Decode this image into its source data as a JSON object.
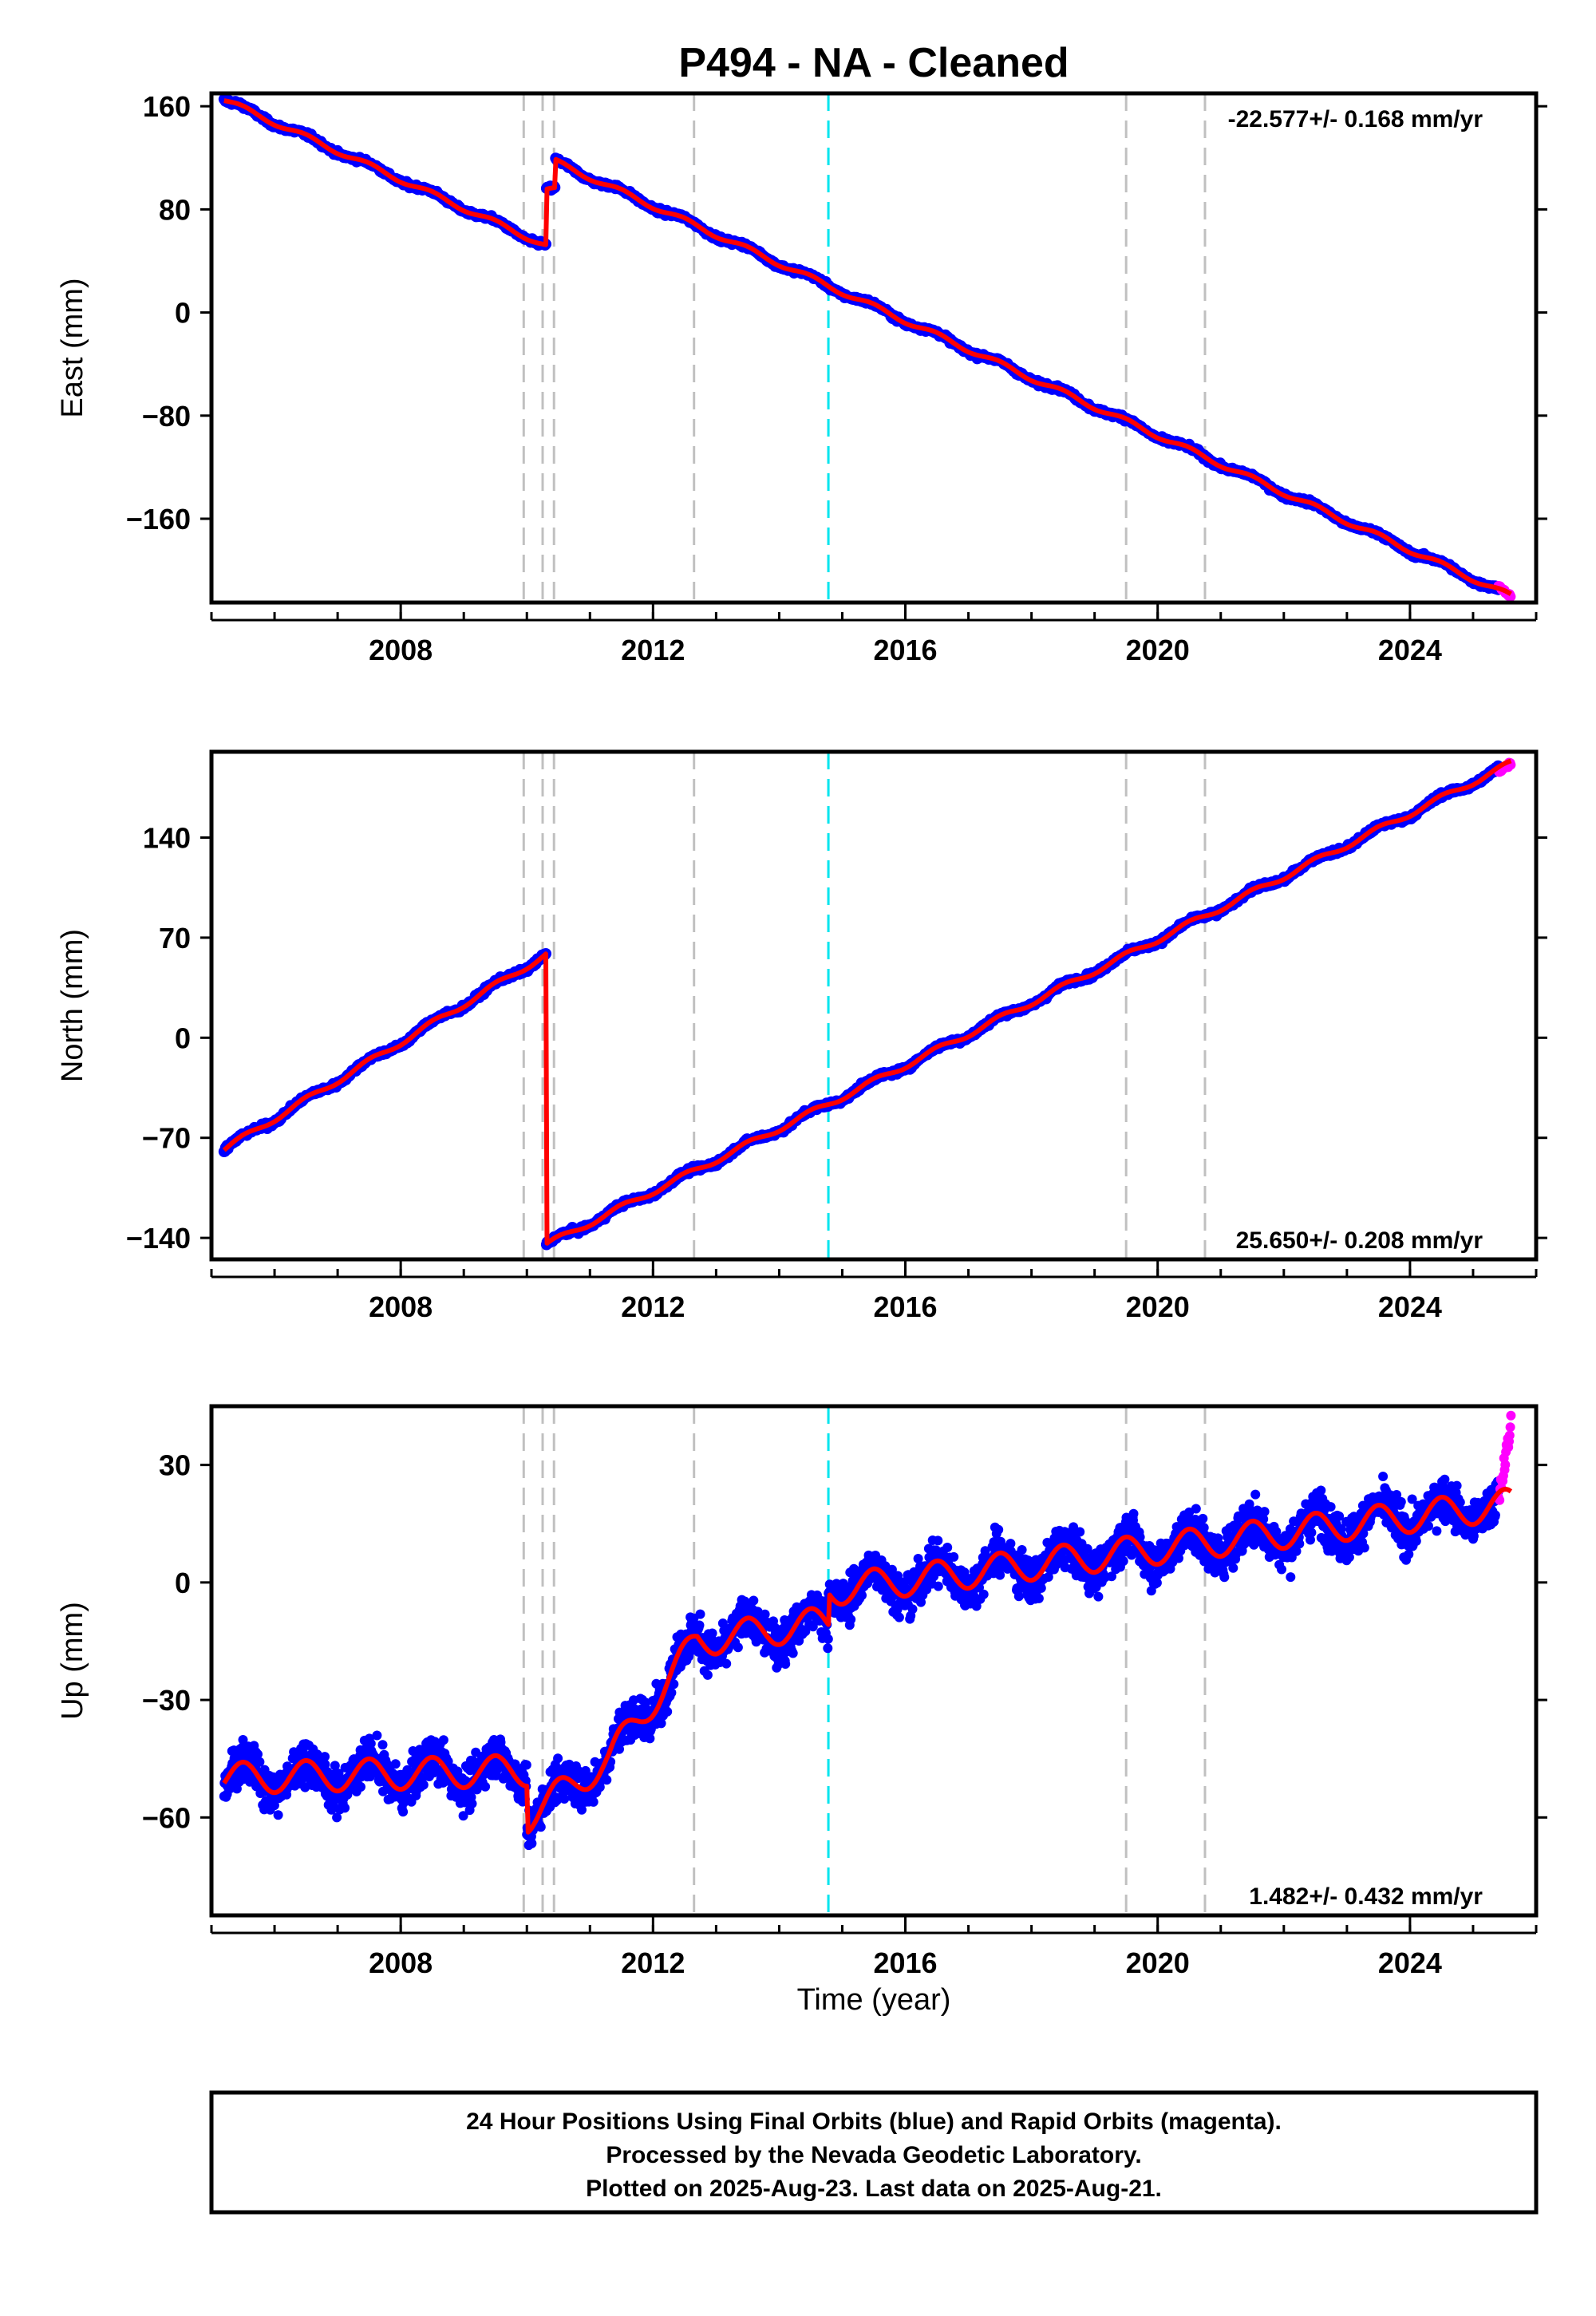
{
  "title": "P494  - NA - Cleaned",
  "colors": {
    "final_orbits": "#0000ff",
    "rapid_orbits": "#ff00ff",
    "model": "#ff0000",
    "event_line": "#c0c0c0",
    "antenna_line": "#00e5ee"
  },
  "x_axis": {
    "label": "Time (year)",
    "range": [
      2005.0,
      2026.0
    ],
    "ticks": [
      2008,
      2012,
      2016,
      2020,
      2024
    ],
    "tick_labels": [
      "2008",
      "2012",
      "2016",
      "2020",
      "2024"
    ],
    "minor_ticks": [
      2005,
      2006,
      2007,
      2008,
      2009,
      2010,
      2011,
      2012,
      2013,
      2014,
      2015,
      2016,
      2017,
      2018,
      2019,
      2020,
      2021,
      2022,
      2023,
      2024,
      2025,
      2026
    ]
  },
  "event_lines": [
    2009.95,
    2010.25,
    2010.43,
    2012.65,
    2019.5,
    2020.75
  ],
  "antenna_change_lines": [
    2014.78
  ],
  "chart_data": [
    {
      "type": "scatter",
      "component": "East",
      "ylabel": "East (mm)",
      "ylim": [
        -225,
        170
      ],
      "yticks": [
        160,
        80,
        0,
        -80,
        -160
      ],
      "ytick_labels": [
        "160",
        "80",
        "0",
        "−80",
        "−160"
      ],
      "rate": "-22.577+/- 0.168 mm/yr",
      "rate_position": "top-right",
      "series": [
        {
          "segment": "pre-2010",
          "x": [
            2005.2,
            2010.3
          ],
          "y": [
            165,
            52
          ]
        },
        {
          "segment": "offset",
          "x": [
            2010.3,
            2010.45
          ],
          "y": [
            95,
            95
          ]
        },
        {
          "segment": "post-2010",
          "x": [
            2010.45,
            2025.6
          ],
          "y": [
            117,
            -220
          ]
        }
      ],
      "rapid_points": {
        "x": [
          2025.4,
          2025.6
        ],
        "y": [
          -212,
          -220
        ]
      }
    },
    {
      "type": "scatter",
      "component": "North",
      "ylabel": "North (mm)",
      "ylim": [
        -155,
        200
      ],
      "yticks": [
        140,
        70,
        0,
        -70,
        -140
      ],
      "ytick_labels": [
        "140",
        "70",
        "0",
        "−70",
        "−140"
      ],
      "rate": "25.650+/- 0.208 mm/yr",
      "rate_position": "bottom-right",
      "series": [
        {
          "segment": "pre-2010",
          "x": [
            2005.2,
            2010.3
          ],
          "y": [
            -78,
            58
          ]
        },
        {
          "segment": "post-2010",
          "x": [
            2010.3,
            2025.6
          ],
          "y": [
            -145,
            192
          ]
        }
      ],
      "rapid_points": {
        "x": [
          2025.4,
          2025.6
        ],
        "y": [
          186,
          192
        ]
      }
    },
    {
      "type": "scatter",
      "component": "Up",
      "ylabel": "Up (mm)",
      "ylim": [
        -85,
        45
      ],
      "yticks": [
        30,
        0,
        -30,
        -60
      ],
      "ytick_labels": [
        "30",
        "0",
        "−30",
        "−60"
      ],
      "rate": "1.482+/- 0.432 mm/yr",
      "rate_position": "bottom-right",
      "series": [
        {
          "segment": "2005-2010",
          "x": [
            2005.2,
            2010.0
          ],
          "y": [
            -50,
            -48
          ]
        },
        {
          "segment": "2010-2011",
          "x": [
            2010.0,
            2011.3
          ],
          "y": [
            -60,
            -45
          ]
        },
        {
          "segment": "transient",
          "x": [
            2011.3,
            2012.7
          ],
          "y": [
            -45,
            -15
          ]
        },
        {
          "segment": "2012-2014.8",
          "x": [
            2012.7,
            2014.78
          ],
          "y": [
            -15,
            -10
          ]
        },
        {
          "segment": "2014.8-2025",
          "x": [
            2014.78,
            2025.6
          ],
          "y": [
            -2,
            20
          ]
        }
      ],
      "rapid_points": {
        "x": [
          2025.4,
          2025.6
        ],
        "y": [
          20,
          40
        ]
      }
    }
  ],
  "footer": {
    "line1": "24 Hour Positions Using Final Orbits (blue) and Rapid Orbits (magenta).",
    "line2": "Processed by the Nevada Geodetic Laboratory.",
    "line3": "Plotted on 2025-Aug-23. Last data on 2025-Aug-21."
  }
}
